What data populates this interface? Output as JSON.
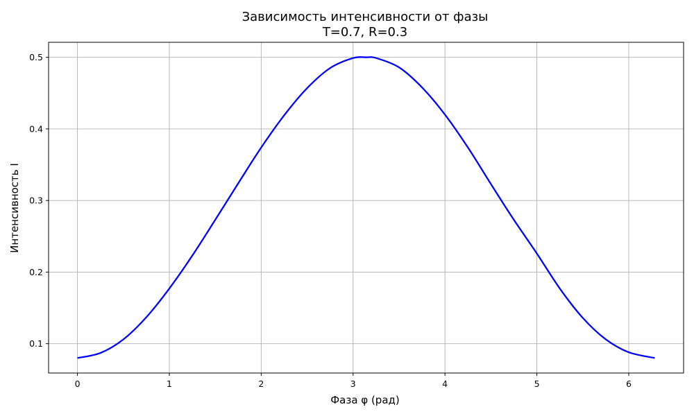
{
  "chart_data": {
    "type": "line",
    "title": "Зависимость интенсивности от фазы",
    "subtitle": "T=0.7, R=0.3",
    "xlabel": "Фаза φ (рад)",
    "ylabel": "Интенсивность I",
    "xlim": [
      -0.314,
      6.597
    ],
    "ylim": [
      0.059,
      0.521
    ],
    "xticks": [
      0,
      1,
      2,
      3,
      4,
      5,
      6
    ],
    "xtick_labels": [
      "0",
      "1",
      "2",
      "3",
      "4",
      "5",
      "6"
    ],
    "yticks": [
      0.1,
      0.2,
      0.3,
      0.4,
      0.5
    ],
    "ytick_labels": [
      "0.1",
      "0.2",
      "0.3",
      "0.4",
      "0.5"
    ],
    "grid": true,
    "colors": {
      "line": "#0000ff",
      "grid": "#b0b0b0",
      "axes": "#000000"
    },
    "series": [
      {
        "x": [
          0,
          0.25,
          0.5,
          0.75,
          1.0,
          1.25,
          1.5,
          1.75,
          2.0,
          2.25,
          2.5,
          2.75,
          3.0,
          3.1416,
          3.25,
          3.5,
          3.75,
          4.0,
          4.25,
          4.5,
          4.75,
          5.0,
          5.25,
          5.5,
          5.75,
          6.0,
          6.2832
        ],
        "y": [
          0.08,
          0.087,
          0.106,
          0.137,
          0.177,
          0.223,
          0.273,
          0.324,
          0.374,
          0.419,
          0.457,
          0.485,
          0.499,
          0.5,
          0.499,
          0.486,
          0.458,
          0.42,
          0.374,
          0.323,
          0.273,
          0.226,
          0.177,
          0.136,
          0.106,
          0.088,
          0.08
        ]
      }
    ]
  }
}
